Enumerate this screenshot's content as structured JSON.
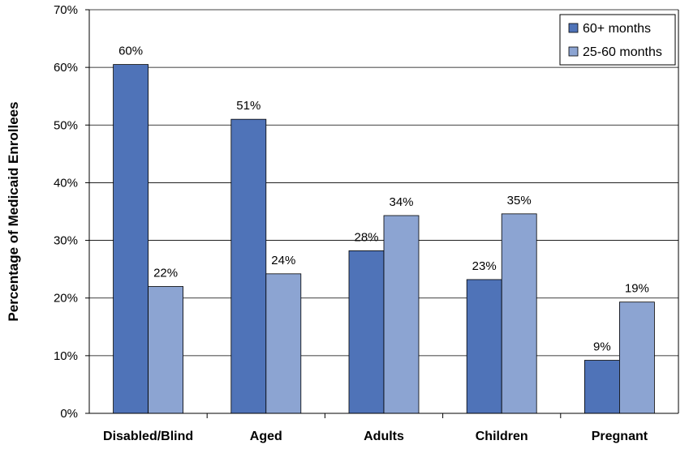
{
  "chart_data": {
    "type": "bar",
    "title": "",
    "xlabel": "",
    "ylabel": "Percentage of Medicaid Enrollees",
    "ylim": [
      0,
      70
    ],
    "yticks": [
      "0%",
      "10%",
      "20%",
      "30%",
      "40%",
      "50%",
      "60%",
      "70%"
    ],
    "grid": true,
    "legend_position": "top-right",
    "categories": [
      "Disabled/Blind",
      "Aged",
      "Adults",
      "Children",
      "Pregnant"
    ],
    "series": [
      {
        "name": "60+ months",
        "color": "#4F73B8",
        "values": [
          60.5,
          51,
          28.2,
          23.2,
          9.2
        ],
        "labels": [
          "60%",
          "51%",
          "28%",
          "23%",
          "9%"
        ]
      },
      {
        "name": "25-60 months",
        "color": "#8CA4D2",
        "values": [
          22,
          24.2,
          34.3,
          34.6,
          19.3
        ],
        "labels": [
          "22%",
          "24%",
          "34%",
          "35%",
          "19%"
        ]
      }
    ]
  }
}
